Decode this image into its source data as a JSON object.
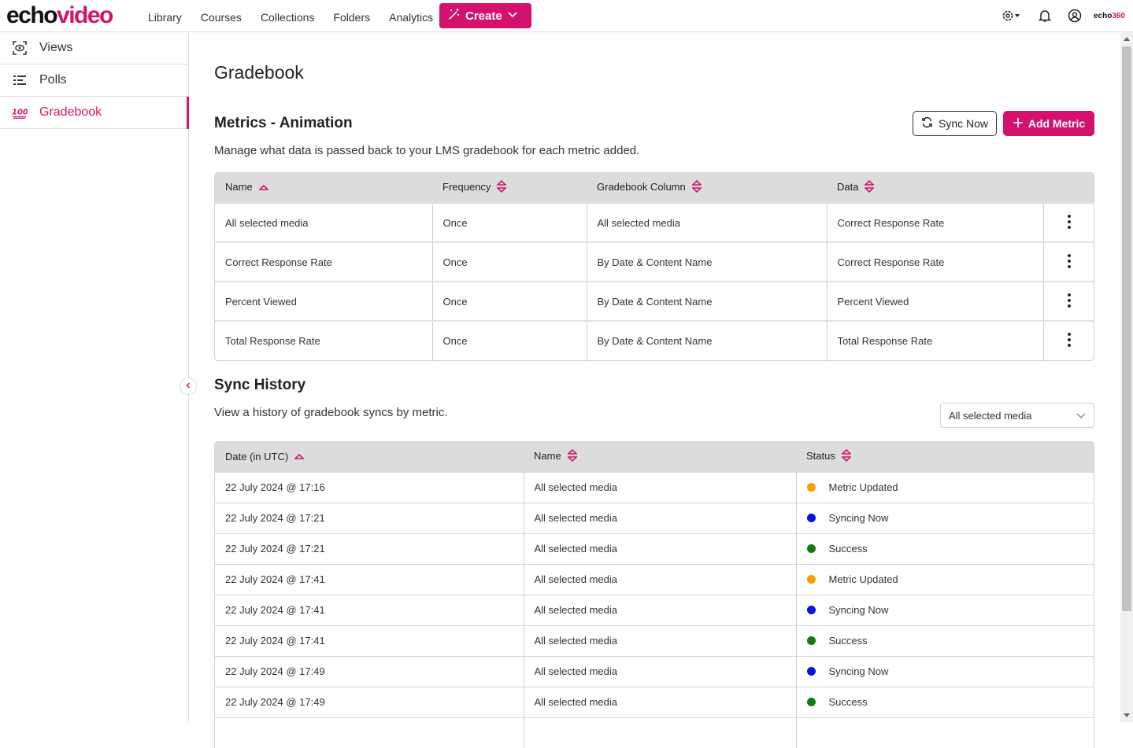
{
  "header": {
    "logo_part1": "echo",
    "logo_part2": "video",
    "nav": [
      "Library",
      "Courses",
      "Collections",
      "Folders",
      "Analytics"
    ],
    "create_label": "Create",
    "brand_small_1": "echo",
    "brand_small_2": "360"
  },
  "sidebar": {
    "items": [
      {
        "label": "Views",
        "icon": "views-icon"
      },
      {
        "label": "Polls",
        "icon": "polls-icon"
      },
      {
        "label": "Gradebook",
        "icon": "gradebook-100-icon"
      }
    ]
  },
  "page": {
    "title": "Gradebook",
    "metrics_title": "Metrics - Animation",
    "metrics_desc": "Manage what data is passed back to your LMS gradebook for each metric added.",
    "sync_now_label": "Sync Now",
    "add_metric_label": "Add Metric",
    "history_title": "Sync History",
    "history_desc": "View a history of gradebook syncs by metric.",
    "history_filter_value": "All selected media"
  },
  "metrics_table": {
    "headers": [
      "Name",
      "Frequency",
      "Gradebook Column",
      "Data"
    ],
    "rows": [
      [
        "All selected media",
        "Once",
        "All selected media",
        "Correct Response Rate"
      ],
      [
        "Correct Response Rate",
        "Once",
        "By Date & Content Name",
        "Correct Response Rate"
      ],
      [
        "Percent Viewed",
        "Once",
        "By Date & Content Name",
        "Percent Viewed"
      ],
      [
        "Total Response Rate",
        "Once",
        "By Date & Content Name",
        "Total Response Rate"
      ]
    ]
  },
  "history_table": {
    "headers": [
      "Date (in UTC)",
      "Name",
      "Status"
    ],
    "rows": [
      [
        "22 July 2024 @ 17:16",
        "All selected media",
        "Metric Updated"
      ],
      [
        "22 July 2024 @ 17:21",
        "All selected media",
        "Syncing Now"
      ],
      [
        "22 July 2024 @ 17:21",
        "All selected media",
        "Success"
      ],
      [
        "22 July 2024 @ 17:41",
        "All selected media",
        "Metric Updated"
      ],
      [
        "22 July 2024 @ 17:41",
        "All selected media",
        "Syncing Now"
      ],
      [
        "22 July 2024 @ 17:41",
        "All selected media",
        "Success"
      ],
      [
        "22 July 2024 @ 17:49",
        "All selected media",
        "Syncing Now"
      ],
      [
        "22 July 2024 @ 17:49",
        "All selected media",
        "Success"
      ]
    ]
  },
  "status_colors": {
    "Metric Updated": "#f5a000",
    "Syncing Now": "#0a14e0",
    "Success": "#0f7a0f"
  },
  "colors": {
    "accent": "#d4126e"
  }
}
